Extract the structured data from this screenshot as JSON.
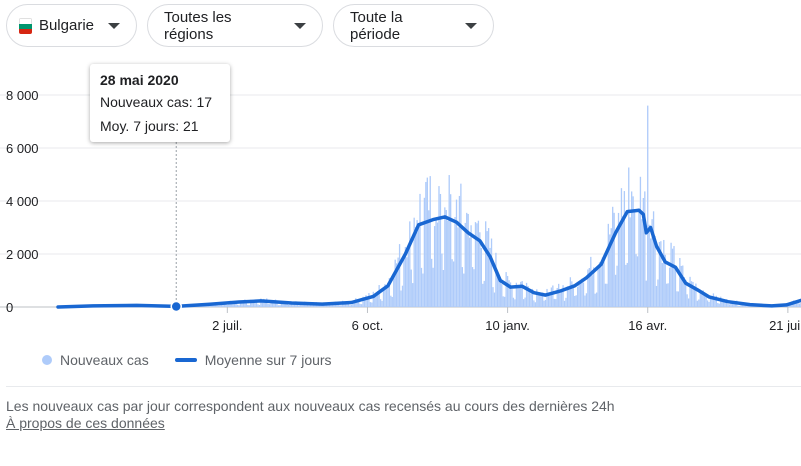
{
  "filters": {
    "country": "Bulgarie",
    "regions": "Toutes les régions",
    "period": "Toute la période"
  },
  "icons": {
    "flag": "bulgaria-flag-icon",
    "dropdown": "caret-down-icon"
  },
  "colors": {
    "bars": "#aecbfa",
    "line": "#1967d2",
    "flag": [
      "#ffffff",
      "#00966e",
      "#d62612"
    ]
  },
  "tooltip": {
    "date": "28 mai 2020",
    "new_cases_label": "Nouveaux cas",
    "new_cases_value": "17",
    "avg_label": "Moy. 7 jours",
    "avg_value": "21"
  },
  "legend": {
    "bars": "Nouveaux cas",
    "line": "Moyenne sur 7 jours"
  },
  "footnote": "Les nouveaux cas par jour correspondent aux nouveaux cas recensés au cours des dernières 24h",
  "about_link": "À propos de ces données",
  "chart_data": {
    "type": "bar",
    "x_start": "2020-03-08",
    "x_end": "2021-07-30",
    "y_range": [
      0,
      8000
    ],
    "y_ticks": [
      0,
      2000,
      4000,
      6000,
      8000
    ],
    "y_tick_labels": [
      "0",
      "2 000",
      "4 000",
      "6 000",
      "8 000"
    ],
    "x_ticks": [
      {
        "date": "2020-07-02",
        "label": "2 juil."
      },
      {
        "date": "2020-10-06",
        "label": "6 oct."
      },
      {
        "date": "2021-01-10",
        "label": "10 janv."
      },
      {
        "date": "2021-04-16",
        "label": "16 avr."
      },
      {
        "date": "2021-07-21",
        "label": "21 juil."
      }
    ],
    "highlight": {
      "date": "2020-05-28",
      "new_cases": 17,
      "avg": 21
    },
    "series": [
      {
        "name": "Nouveaux cas",
        "kind": "bar"
      },
      {
        "name": "Moyenne sur 7 jours",
        "kind": "line",
        "points": [
          [
            "2020-03-08",
            0
          ],
          [
            "2020-04-01",
            40
          ],
          [
            "2020-05-01",
            60
          ],
          [
            "2020-05-28",
            21
          ],
          [
            "2020-06-20",
            100
          ],
          [
            "2020-07-10",
            190
          ],
          [
            "2020-07-25",
            230
          ],
          [
            "2020-08-15",
            150
          ],
          [
            "2020-09-05",
            110
          ],
          [
            "2020-09-25",
            170
          ],
          [
            "2020-10-10",
            400
          ],
          [
            "2020-10-20",
            800
          ],
          [
            "2020-11-01",
            2000
          ],
          [
            "2020-11-10",
            3100
          ],
          [
            "2020-11-20",
            3300
          ],
          [
            "2020-11-28",
            3400
          ],
          [
            "2020-12-06",
            3200
          ],
          [
            "2020-12-14",
            2800
          ],
          [
            "2020-12-22",
            2500
          ],
          [
            "2020-12-29",
            1900
          ],
          [
            "2021-01-05",
            1000
          ],
          [
            "2021-01-12",
            750
          ],
          [
            "2021-01-20",
            780
          ],
          [
            "2021-01-28",
            540
          ],
          [
            "2021-02-05",
            450
          ],
          [
            "2021-02-15",
            600
          ],
          [
            "2021-02-25",
            800
          ],
          [
            "2021-03-05",
            1100
          ],
          [
            "2021-03-15",
            1600
          ],
          [
            "2021-03-25",
            2800
          ],
          [
            "2021-04-02",
            3600
          ],
          [
            "2021-04-10",
            3650
          ],
          [
            "2021-04-13",
            3500
          ],
          [
            "2021-04-15",
            2800
          ],
          [
            "2021-04-18",
            3000
          ],
          [
            "2021-04-22",
            2300
          ],
          [
            "2021-04-28",
            1700
          ],
          [
            "2021-05-05",
            1500
          ],
          [
            "2021-05-12",
            900
          ],
          [
            "2021-05-20",
            650
          ],
          [
            "2021-05-28",
            380
          ],
          [
            "2021-06-10",
            200
          ],
          [
            "2021-06-25",
            90
          ],
          [
            "2021-07-10",
            40
          ],
          [
            "2021-07-20",
            80
          ],
          [
            "2021-07-30",
            250
          ]
        ]
      }
    ],
    "spikes": [
      [
        "2021-04-16",
        7600
      ]
    ]
  }
}
